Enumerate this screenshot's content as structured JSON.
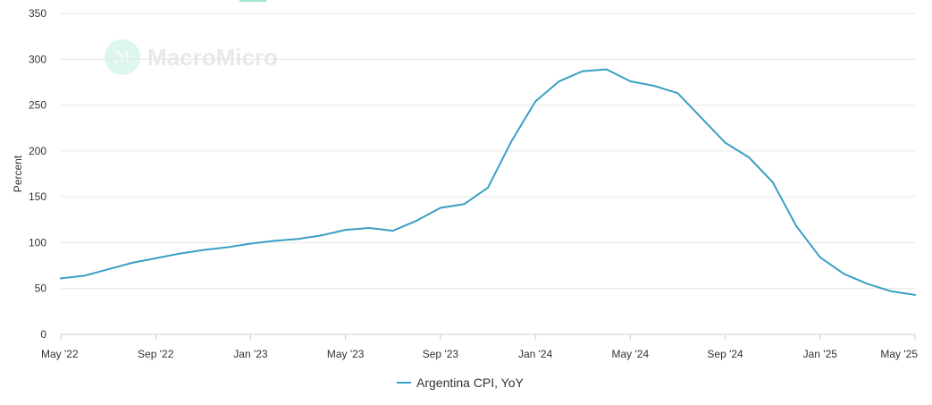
{
  "watermark": {
    "text": "MacroMicro"
  },
  "colors": {
    "line": "#3a9fc4",
    "grid": "#e6e6e6",
    "axis": "#cccccc"
  },
  "chart_data": {
    "type": "line",
    "ylabel": "Percent",
    "xlabel": "",
    "ylim": [
      0,
      350
    ],
    "yticks": [
      0,
      50,
      100,
      150,
      200,
      250,
      300,
      350
    ],
    "x_tick_labels": [
      "May '22",
      "Sep '22",
      "Jan '23",
      "May '23",
      "Sep '23",
      "Jan '24",
      "May '24",
      "Sep '24",
      "Jan '25",
      "May '25"
    ],
    "x": [
      "May '22",
      "Jun '22",
      "Jul '22",
      "Aug '22",
      "Sep '22",
      "Oct '22",
      "Nov '22",
      "Dec '22",
      "Jan '23",
      "Feb '23",
      "Mar '23",
      "Apr '23",
      "May '23",
      "Jun '23",
      "Jul '23",
      "Aug '23",
      "Sep '23",
      "Oct '23",
      "Nov '23",
      "Dec '23",
      "Jan '24",
      "Feb '24",
      "Mar '24",
      "Apr '24",
      "May '24",
      "Jun '24",
      "Jul '24",
      "Aug '24",
      "Sep '24",
      "Oct '24",
      "Nov '24",
      "Dec '24",
      "Jan '25",
      "Feb '25",
      "Mar '25",
      "Apr '25",
      "May '25"
    ],
    "grid": true,
    "legend_position": "bottom",
    "series": [
      {
        "name": "Argentina CPI, YoY",
        "values": [
          61,
          64,
          71,
          78,
          83,
          88,
          92,
          95,
          99,
          102,
          104,
          108,
          114,
          116,
          113,
          124,
          138,
          142,
          160,
          211,
          254,
          276,
          287,
          289,
          276,
          271,
          263,
          236,
          209,
          193,
          166,
          118,
          84,
          66,
          55,
          47,
          43
        ]
      }
    ]
  }
}
